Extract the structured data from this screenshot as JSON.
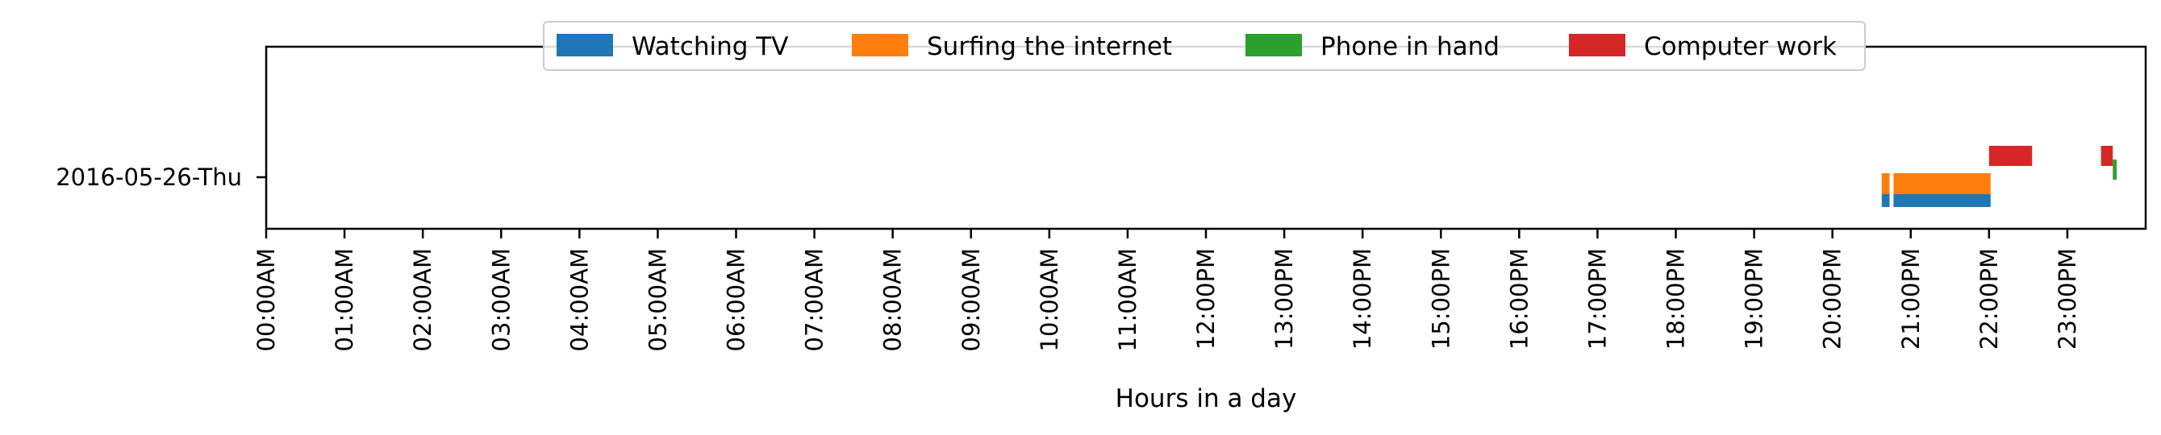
{
  "chart_data": {
    "type": "bar",
    "orientation": "horizontal-timeline",
    "title": "",
    "xlabel": "Hours in a day",
    "ylabel": "",
    "xlim": [
      0,
      24
    ],
    "x_ticks": [
      0,
      1,
      2,
      3,
      4,
      5,
      6,
      7,
      8,
      9,
      10,
      11,
      12,
      13,
      14,
      15,
      16,
      17,
      18,
      19,
      20,
      21,
      22,
      23
    ],
    "x_tick_labels": [
      "00:00AM",
      "01:00AM",
      "02:00AM",
      "03:00AM",
      "04:00AM",
      "05:00AM",
      "06:00AM",
      "07:00AM",
      "08:00AM",
      "09:00AM",
      "10:00AM",
      "11:00AM",
      "12:00PM",
      "13:00PM",
      "14:00PM",
      "15:00PM",
      "16:00PM",
      "17:00PM",
      "18:00PM",
      "19:00PM",
      "20:00PM",
      "21:00PM",
      "22:00PM",
      "23:00PM"
    ],
    "categories": [
      "2016-05-26-Thu"
    ],
    "legend_position": "top-center",
    "grid": false,
    "series": [
      {
        "name": "Watching TV",
        "color": "#1f77b4",
        "intervals": [
          {
            "start": 20.63,
            "end": 20.73
          },
          {
            "start": 20.78,
            "end": 22.02
          }
        ]
      },
      {
        "name": "Surfing the internet",
        "color": "#ff7f0e",
        "intervals": [
          {
            "start": 20.63,
            "end": 20.73
          },
          {
            "start": 20.78,
            "end": 22.02
          }
        ]
      },
      {
        "name": "Phone in hand",
        "color": "#2ca02c",
        "intervals": [
          {
            "start": 23.58,
            "end": 23.63
          }
        ]
      },
      {
        "name": "Computer work",
        "color": "#d62728",
        "intervals": [
          {
            "start": 22.0,
            "end": 22.55
          },
          {
            "start": 23.43,
            "end": 23.58
          }
        ]
      }
    ]
  }
}
